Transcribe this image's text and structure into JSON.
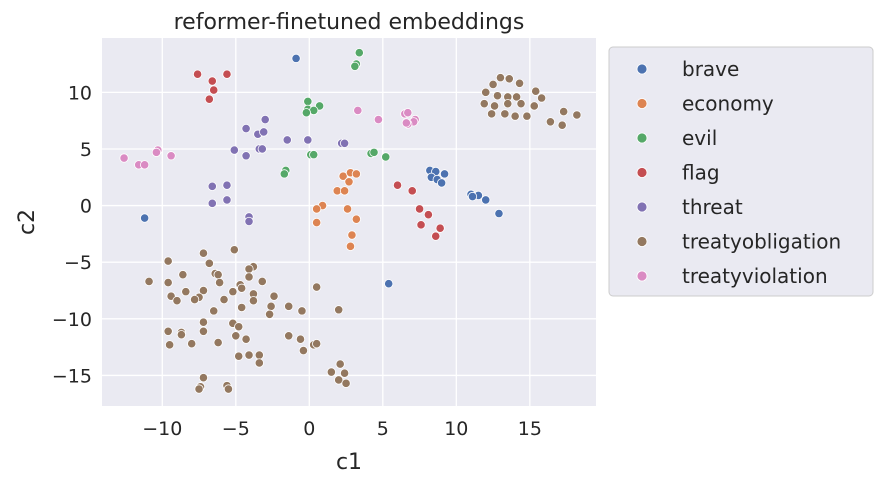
{
  "chart_data": {
    "type": "scatter",
    "title": "reformer-finetuned embeddings",
    "xlabel": "c1",
    "ylabel": "c2",
    "xlim": [
      -14.1,
      19.5
    ],
    "ylim": [
      -17.7,
      14.8
    ],
    "xticks": [
      -10,
      -5,
      0,
      5,
      10,
      15
    ],
    "yticks": [
      -15,
      -10,
      -5,
      0,
      5,
      10
    ],
    "grid": true,
    "legend_position": "outside-right",
    "series": [
      {
        "name": "brave",
        "color": "#4c72b0",
        "points": [
          [
            -0.9,
            13.0
          ],
          [
            -11.2,
            -1.1
          ],
          [
            8.2,
            3.1
          ],
          [
            8.6,
            3.0
          ],
          [
            9.2,
            2.8
          ],
          [
            8.3,
            2.5
          ],
          [
            8.7,
            2.3
          ],
          [
            9.0,
            2.0
          ],
          [
            11.0,
            1.0
          ],
          [
            11.5,
            0.9
          ],
          [
            11.1,
            0.8
          ],
          [
            12.0,
            0.5
          ],
          [
            12.9,
            -0.7
          ],
          [
            5.4,
            -6.9
          ]
        ]
      },
      {
        "name": "economy",
        "color": "#dd8452",
        "points": [
          [
            2.3,
            2.6
          ],
          [
            2.8,
            2.9
          ],
          [
            3.2,
            2.8
          ],
          [
            2.7,
            2.1
          ],
          [
            1.9,
            1.3
          ],
          [
            2.4,
            1.3
          ],
          [
            0.9,
            0.0
          ],
          [
            0.5,
            -0.3
          ],
          [
            2.6,
            -0.3
          ],
          [
            3.2,
            -1.2
          ],
          [
            0.5,
            -1.5
          ],
          [
            2.9,
            -2.6
          ],
          [
            2.8,
            -3.6
          ]
        ]
      },
      {
        "name": "evil",
        "color": "#55a868",
        "points": [
          [
            3.4,
            13.5
          ],
          [
            3.2,
            12.5
          ],
          [
            3.1,
            12.3
          ],
          [
            -0.1,
            9.2
          ],
          [
            0.7,
            8.8
          ],
          [
            -0.1,
            8.5
          ],
          [
            0.3,
            8.4
          ],
          [
            -0.2,
            8.2
          ],
          [
            0.1,
            4.5
          ],
          [
            0.3,
            4.5
          ],
          [
            4.2,
            4.6
          ],
          [
            4.4,
            4.7
          ],
          [
            5.2,
            4.3
          ],
          [
            -1.6,
            3.1
          ],
          [
            -1.7,
            2.8
          ]
        ]
      },
      {
        "name": "flag",
        "color": "#c44e52",
        "points": [
          [
            -7.6,
            11.6
          ],
          [
            -5.6,
            11.6
          ],
          [
            -6.6,
            11.0
          ],
          [
            -6.5,
            10.2
          ],
          [
            -6.8,
            9.4
          ],
          [
            6.0,
            1.8
          ],
          [
            7.0,
            1.3
          ],
          [
            7.5,
            -0.3
          ],
          [
            8.1,
            -0.8
          ],
          [
            7.6,
            -1.7
          ],
          [
            8.9,
            -2.0
          ],
          [
            8.6,
            -2.7
          ]
        ]
      },
      {
        "name": "threat",
        "color": "#8172b3",
        "points": [
          [
            -3.0,
            7.6
          ],
          [
            -4.3,
            6.8
          ],
          [
            -3.5,
            6.3
          ],
          [
            -3.1,
            6.5
          ],
          [
            -1.5,
            5.8
          ],
          [
            -0.1,
            5.8
          ],
          [
            2.2,
            5.5
          ],
          [
            2.4,
            5.5
          ],
          [
            -3.4,
            5.0
          ],
          [
            -3.2,
            5.0
          ],
          [
            -5.1,
            4.9
          ],
          [
            -4.3,
            4.4
          ],
          [
            -6.6,
            1.7
          ],
          [
            -5.6,
            1.8
          ],
          [
            -5.6,
            0.5
          ],
          [
            -6.6,
            0.2
          ],
          [
            -4.1,
            -1.0
          ],
          [
            -4.1,
            -1.4
          ]
        ]
      },
      {
        "name": "treatyobligation",
        "color": "#937860",
        "points": [
          [
            13.0,
            11.3
          ],
          [
            13.6,
            11.2
          ],
          [
            12.5,
            10.7
          ],
          [
            14.3,
            10.8
          ],
          [
            15.4,
            10.1
          ],
          [
            12.0,
            10.0
          ],
          [
            12.8,
            9.7
          ],
          [
            13.5,
            9.6
          ],
          [
            14.1,
            9.6
          ],
          [
            15.8,
            9.5
          ],
          [
            13.5,
            9.0
          ],
          [
            14.4,
            9.0
          ],
          [
            11.9,
            9.0
          ],
          [
            12.6,
            8.8
          ],
          [
            15.3,
            8.8
          ],
          [
            12.4,
            8.1
          ],
          [
            13.3,
            8.1
          ],
          [
            14.0,
            7.9
          ],
          [
            14.8,
            7.9
          ],
          [
            17.3,
            8.3
          ],
          [
            18.2,
            8.0
          ],
          [
            16.4,
            7.4
          ],
          [
            17.2,
            7.1
          ],
          [
            -5.1,
            -3.9
          ],
          [
            -7.2,
            -4.2
          ],
          [
            -9.6,
            -4.9
          ],
          [
            -6.8,
            -5.1
          ],
          [
            -3.8,
            -5.4
          ],
          [
            -4.1,
            -5.6
          ],
          [
            -6.4,
            -6.0
          ],
          [
            -8.6,
            -6.1
          ],
          [
            -6.2,
            -6.1
          ],
          [
            -4.1,
            -6.3
          ],
          [
            -3.2,
            -6.7
          ],
          [
            -10.9,
            -6.7
          ],
          [
            -9.6,
            -6.8
          ],
          [
            -6.1,
            -6.8
          ],
          [
            -4.7,
            -7.0
          ],
          [
            -7.2,
            -7.5
          ],
          [
            -8.4,
            -7.6
          ],
          [
            -5.2,
            -7.6
          ],
          [
            -4.6,
            -7.3
          ],
          [
            -3.8,
            -7.8
          ],
          [
            0.5,
            -7.2
          ],
          [
            -9.4,
            -8.0
          ],
          [
            -7.5,
            -8.1
          ],
          [
            -2.4,
            -8.0
          ],
          [
            -5.8,
            -8.3
          ],
          [
            -7.8,
            -8.3
          ],
          [
            -9.0,
            -8.4
          ],
          [
            -3.8,
            -8.4
          ],
          [
            -2.6,
            -8.9
          ],
          [
            -1.4,
            -8.9
          ],
          [
            -0.5,
            -9.3
          ],
          [
            -4.6,
            -9.0
          ],
          [
            -6.5,
            -9.3
          ],
          [
            -2.7,
            -9.6
          ],
          [
            2.0,
            -9.2
          ],
          [
            -7.2,
            -10.3
          ],
          [
            -5.2,
            -10.4
          ],
          [
            -4.8,
            -10.7
          ],
          [
            -9.6,
            -11.1
          ],
          [
            -8.7,
            -11.2
          ],
          [
            -7.2,
            -11.1
          ],
          [
            -5.0,
            -11.5
          ],
          [
            -1.4,
            -11.5
          ],
          [
            -8.7,
            -11.4
          ],
          [
            -0.6,
            -11.8
          ],
          [
            -4.3,
            -11.8
          ],
          [
            -6.2,
            -12.1
          ],
          [
            -8.0,
            -12.2
          ],
          [
            -9.5,
            -12.3
          ],
          [
            0.3,
            -12.3
          ],
          [
            0.5,
            -12.2
          ],
          [
            -0.4,
            -12.8
          ],
          [
            -3.4,
            -13.2
          ],
          [
            -4.1,
            -13.2
          ],
          [
            -4.8,
            -13.3
          ],
          [
            -3.4,
            -13.9
          ],
          [
            2.1,
            -14.0
          ],
          [
            2.4,
            -14.8
          ],
          [
            1.5,
            -14.7
          ],
          [
            2.0,
            -15.4
          ],
          [
            2.5,
            -15.7
          ],
          [
            -7.2,
            -15.2
          ],
          [
            -7.4,
            -16.0
          ],
          [
            -7.5,
            -16.2
          ],
          [
            -5.6,
            -15.9
          ],
          [
            -5.5,
            -16.2
          ]
        ]
      },
      {
        "name": "treatyviolation",
        "color": "#da8bc3",
        "points": [
          [
            -12.6,
            4.2
          ],
          [
            -11.6,
            3.6
          ],
          [
            -11.2,
            3.6
          ],
          [
            -10.3,
            4.9
          ],
          [
            -10.4,
            4.7
          ],
          [
            -9.4,
            4.4
          ],
          [
            3.3,
            8.4
          ],
          [
            6.5,
            8.1
          ],
          [
            6.7,
            8.2
          ],
          [
            7.2,
            7.6
          ],
          [
            7.1,
            7.4
          ],
          [
            6.7,
            7.2
          ],
          [
            6.6,
            7.3
          ],
          [
            4.7,
            7.6
          ]
        ]
      }
    ]
  }
}
